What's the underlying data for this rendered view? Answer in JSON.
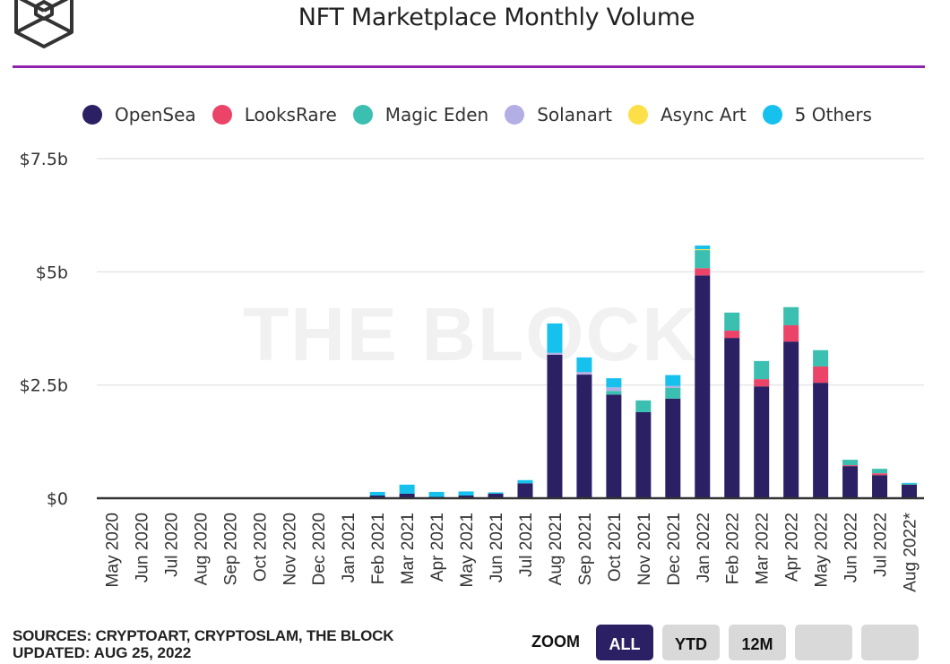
{
  "header": {
    "title": "NFT Marketplace Monthly Volume",
    "logo": "the-block-cube-logo",
    "accent_rule_color": "#8e24aa"
  },
  "watermark": "THE BLOCK",
  "legend": [
    {
      "name": "OpenSea",
      "color": "#2b2063"
    },
    {
      "name": "LooksRare",
      "color": "#ec4368"
    },
    {
      "name": "Magic Eden",
      "color": "#3bbfb0"
    },
    {
      "name": "Solanart",
      "color": "#b3aee3"
    },
    {
      "name": "Async Art",
      "color": "#fde047"
    },
    {
      "name": "5 Others",
      "color": "#16c1ee"
    }
  ],
  "chart_data": {
    "type": "bar",
    "stacked": true,
    "title": "NFT Marketplace Monthly Volume",
    "xlabel": "",
    "ylabel": "",
    "ylim": [
      0,
      7.5
    ],
    "y_unit": "USD billions",
    "y_ticks": [
      {
        "value": 0,
        "label": "$0"
      },
      {
        "value": 2.5,
        "label": "$2.5b"
      },
      {
        "value": 5,
        "label": "$5b"
      },
      {
        "value": 7.5,
        "label": "$7.5b"
      }
    ],
    "grid": true,
    "legend_position": "top",
    "categories": [
      "May 2020",
      "Jun 2020",
      "Jul 2020",
      "Aug 2020",
      "Sep 2020",
      "Oct 2020",
      "Nov 2020",
      "Dec 2020",
      "Jan 2021",
      "Feb 2021",
      "Mar 2021",
      "Apr 2021",
      "May 2021",
      "Jun 2021",
      "Jul 2021",
      "Aug 2021",
      "Sep 2021",
      "Oct 2021",
      "Nov 2021",
      "Dec 2021",
      "Jan 2022",
      "Feb 2022",
      "Mar 2022",
      "Apr 2022",
      "May 2022",
      "Jun 2022",
      "Jul 2022",
      "Aug 2022*"
    ],
    "series": [
      {
        "name": "OpenSea",
        "values": [
          0.001,
          0.001,
          0.001,
          0.002,
          0.003,
          0.002,
          0.003,
          0.005,
          0.008,
          0.06,
          0.1,
          0.03,
          0.06,
          0.1,
          0.33,
          3.17,
          2.73,
          2.29,
          1.9,
          2.2,
          4.92,
          3.54,
          2.47,
          3.46,
          2.55,
          0.71,
          0.51,
          0.3
        ]
      },
      {
        "name": "LooksRare",
        "values": [
          0,
          0,
          0,
          0,
          0,
          0,
          0,
          0,
          0,
          0,
          0,
          0,
          0,
          0,
          0,
          0,
          0,
          0,
          0,
          0,
          0.16,
          0.16,
          0.16,
          0.36,
          0.36,
          0.02,
          0.04,
          0.0
        ]
      },
      {
        "name": "Magic Eden",
        "values": [
          0,
          0,
          0,
          0,
          0,
          0,
          0,
          0,
          0,
          0,
          0,
          0,
          0,
          0,
          0,
          0,
          0,
          0.08,
          0.26,
          0.24,
          0.4,
          0.4,
          0.4,
          0.4,
          0.36,
          0.12,
          0.1,
          0.02
        ]
      },
      {
        "name": "Solanart",
        "values": [
          0,
          0,
          0,
          0,
          0,
          0,
          0,
          0,
          0,
          0,
          0,
          0,
          0,
          0,
          0,
          0.04,
          0.06,
          0.08,
          0,
          0.04,
          0,
          0,
          0,
          0,
          0,
          0,
          0,
          0
        ]
      },
      {
        "name": "Async Art",
        "values": [
          0,
          0,
          0,
          0,
          0,
          0,
          0,
          0,
          0,
          0,
          0,
          0,
          0,
          0,
          0,
          0,
          0,
          0,
          0,
          0,
          0.02,
          0,
          0,
          0,
          0,
          0,
          0,
          0
        ]
      },
      {
        "name": "5 Others",
        "values": [
          0.002,
          0.002,
          0.002,
          0.003,
          0.004,
          0.004,
          0.005,
          0.008,
          0.01,
          0.08,
          0.2,
          0.11,
          0.09,
          0.03,
          0.07,
          0.65,
          0.32,
          0.2,
          0,
          0.24,
          0.08,
          0,
          0,
          0,
          0,
          0,
          0,
          0.02
        ]
      }
    ]
  },
  "footer": {
    "sources": "SOURCES: CRYPTOART, CRYPTOSLAM, THE BLOCK",
    "updated": "UPDATED: AUG 25, 2022",
    "zoom_label": "ZOOM",
    "zoom_buttons": [
      {
        "label": "ALL",
        "active": true
      },
      {
        "label": "YTD",
        "active": false
      },
      {
        "label": "12M",
        "active": false
      },
      {
        "label": "",
        "active": false
      },
      {
        "label": "",
        "active": false
      }
    ]
  }
}
